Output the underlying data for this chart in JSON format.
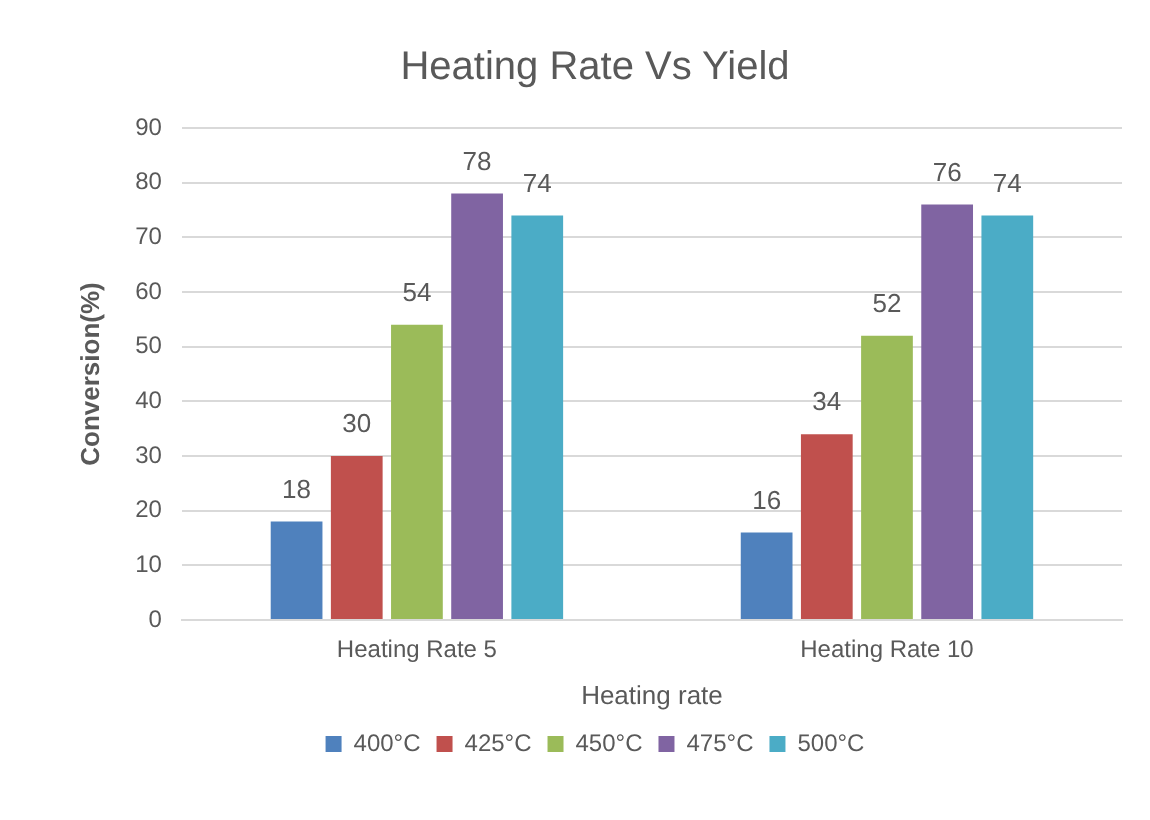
{
  "chart_data": {
    "type": "bar",
    "title": "Heating Rate Vs Yield",
    "xlabel": "Heating rate",
    "ylabel": "Conversion(%)",
    "categories": [
      "Heating Rate 5",
      "Heating Rate 10"
    ],
    "series": [
      {
        "name": "400°C",
        "color": "#4f81bd",
        "values": [
          18,
          16
        ]
      },
      {
        "name": "425°C",
        "color": "#c0504d",
        "values": [
          30,
          34
        ]
      },
      {
        "name": "450°C",
        "color": "#9bbb59",
        "values": [
          54,
          52
        ]
      },
      {
        "name": "475°C",
        "color": "#8064a2",
        "values": [
          78,
          76
        ]
      },
      {
        "name": "500°C",
        "color": "#4bacc6",
        "values": [
          74,
          74
        ]
      }
    ],
    "ylim": [
      0,
      90
    ],
    "yticks": [
      0,
      10,
      20,
      30,
      40,
      50,
      60,
      70,
      80,
      90
    ],
    "grid": "y",
    "legend": "bottom",
    "data_labels": true
  }
}
